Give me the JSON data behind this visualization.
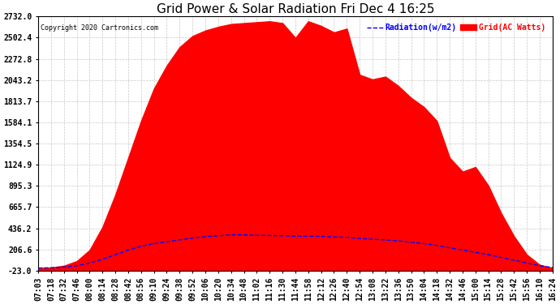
{
  "title": "Grid Power & Solar Radiation Fri Dec 4 16:25",
  "copyright": "Copyright 2020 Cartronics.com",
  "legend_radiation": "Radiation(w/m2)",
  "legend_grid": "Grid(AC Watts)",
  "yticks": [
    -23.0,
    206.6,
    436.2,
    665.7,
    895.3,
    1124.9,
    1354.5,
    1584.1,
    1813.7,
    2043.2,
    2272.8,
    2502.4,
    2732.0
  ],
  "ymin": -23.0,
  "ymax": 2732.0,
  "background_color": "#ffffff",
  "grid_color": "#c8c8c8",
  "fill_color": "#ff0000",
  "line_color": "#0000ff",
  "title_fontsize": 11,
  "tick_fontsize": 7,
  "xtick_labels": [
    "07:03",
    "07:18",
    "07:32",
    "07:46",
    "08:00",
    "08:14",
    "08:28",
    "08:42",
    "08:56",
    "09:10",
    "09:24",
    "09:38",
    "09:52",
    "10:06",
    "10:20",
    "10:34",
    "10:48",
    "11:02",
    "11:16",
    "11:30",
    "11:44",
    "11:58",
    "12:12",
    "12:26",
    "12:40",
    "12:54",
    "13:08",
    "13:22",
    "13:36",
    "13:50",
    "14:04",
    "14:18",
    "14:32",
    "14:46",
    "15:00",
    "15:14",
    "15:28",
    "15:42",
    "15:56",
    "16:10",
    "16:24"
  ],
  "grid_watts": [
    5,
    10,
    30,
    80,
    200,
    450,
    800,
    1200,
    1600,
    1950,
    2200,
    2400,
    2520,
    2580,
    2620,
    2650,
    2660,
    2670,
    2680,
    2660,
    2500,
    2680,
    2630,
    2560,
    2600,
    2100,
    2050,
    2080,
    1980,
    1850,
    1750,
    1600,
    1200,
    1050,
    1100,
    900,
    600,
    350,
    150,
    40,
    5
  ],
  "radiation": [
    5,
    8,
    15,
    30,
    60,
    100,
    150,
    200,
    240,
    270,
    290,
    310,
    330,
    345,
    355,
    365,
    365,
    360,
    358,
    355,
    350,
    350,
    348,
    342,
    338,
    325,
    318,
    310,
    300,
    285,
    270,
    250,
    225,
    200,
    175,
    150,
    120,
    90,
    60,
    30,
    10
  ]
}
